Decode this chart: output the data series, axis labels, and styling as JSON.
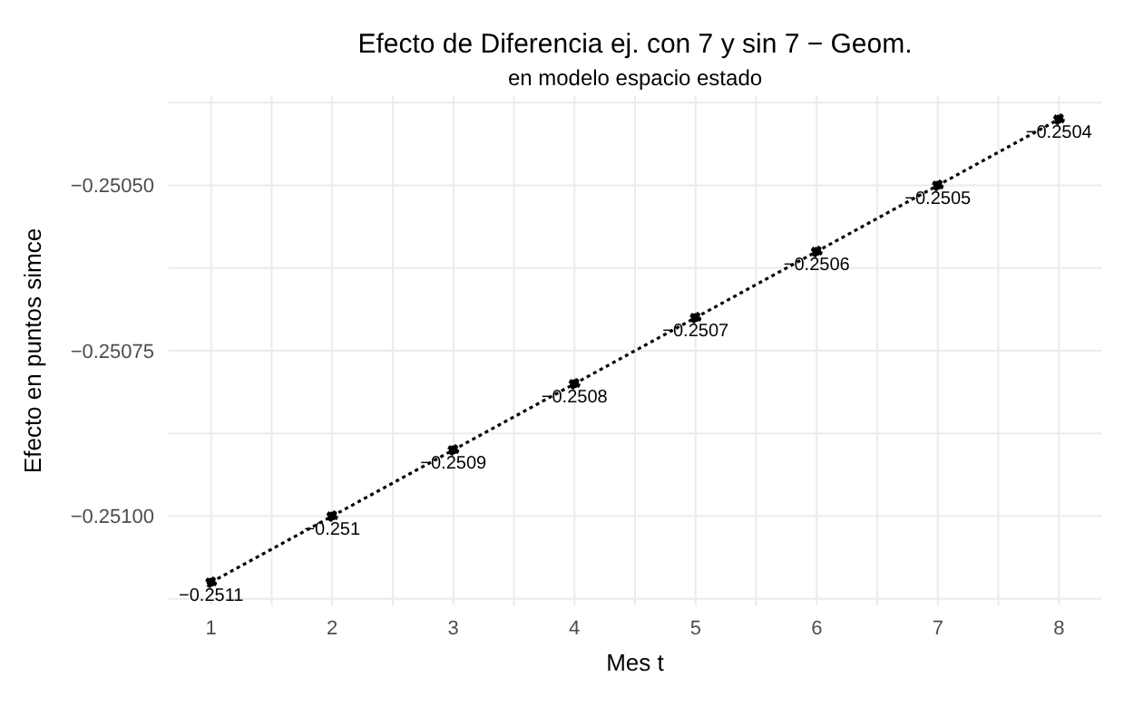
{
  "chart_data": {
    "type": "line",
    "title": "Efecto de Diferencia ej. con 7 y sin 7 − Geom.",
    "subtitle": "en modelo espacio estado",
    "xlabel": "Mes t",
    "ylabel": "Efecto en puntos simce",
    "x": [
      1,
      2,
      3,
      4,
      5,
      6,
      7,
      8
    ],
    "series": [
      {
        "color": "#000000",
        "values": [
          -0.2511,
          -0.251,
          -0.2509,
          -0.2508,
          -0.2507,
          -0.2506,
          -0.2505,
          -0.2504
        ]
      }
    ],
    "xlim": [
      0.65,
      8.35
    ],
    "xticks": [
      1,
      2,
      3,
      4,
      5,
      6,
      7,
      8
    ],
    "ylim": [
      -0.251135,
      -0.250365
    ],
    "yticks": [
      {
        "value": -0.2505,
        "label": "−0.25050"
      },
      {
        "value": -0.25075,
        "label": "−0.25075"
      },
      {
        "value": -0.251,
        "label": "−0.25100"
      }
    ],
    "grid": true,
    "marker": "circle",
    "line_style": "dotted",
    "data_labels": true
  }
}
